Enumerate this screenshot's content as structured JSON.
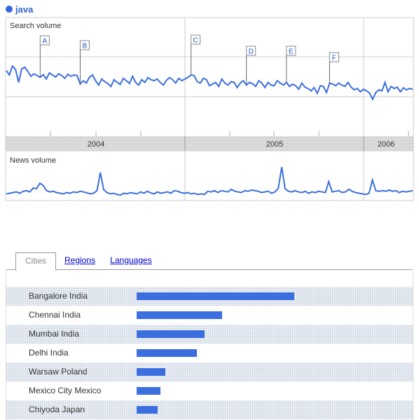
{
  "legend": {
    "term": "java",
    "color": "#3366dd"
  },
  "chart_data": [
    {
      "type": "line",
      "title": "Search volume",
      "x_tick_labels": [
        "2004",
        "2005",
        "2006"
      ],
      "grid": true,
      "series_color": "#3b6fe0",
      "ylim": [
        0,
        3
      ],
      "values": [
        1.85,
        1.72,
        1.98,
        1.88,
        1.5,
        1.9,
        1.95,
        1.82,
        1.68,
        1.75,
        1.7,
        1.65,
        1.73,
        1.6,
        1.78,
        1.72,
        1.66,
        1.75,
        1.7,
        1.62,
        1.74,
        1.68,
        1.72,
        1.7,
        1.45,
        1.55,
        1.48,
        1.65,
        1.72,
        1.55,
        1.42,
        1.6,
        1.52,
        1.46,
        1.38,
        1.58,
        1.5,
        1.44,
        1.62,
        1.55,
        1.47,
        1.68,
        1.5,
        1.42,
        1.58,
        1.5,
        1.64,
        1.58,
        1.55,
        1.6,
        1.5,
        1.42,
        1.56,
        1.64,
        1.58,
        1.48,
        1.62,
        1.55,
        1.6,
        1.65,
        1.72,
        1.7,
        1.52,
        1.48,
        1.62,
        1.58,
        1.4,
        1.45,
        1.5,
        1.38,
        1.6,
        1.48,
        1.42,
        1.52,
        1.5,
        1.35,
        1.48,
        1.55,
        1.42,
        1.5,
        1.46,
        1.38,
        1.55,
        1.48,
        1.35,
        1.5,
        1.42,
        1.4,
        1.55,
        1.48,
        1.42,
        1.5,
        1.38,
        1.45,
        1.4,
        1.3,
        1.48,
        1.36,
        1.32,
        1.25,
        1.35,
        1.18,
        1.4,
        1.38,
        1.2,
        1.48,
        1.45,
        1.4,
        1.48,
        1.42,
        1.38,
        1.5,
        1.36,
        1.28,
        1.32,
        1.22,
        1.3,
        1.25,
        1.18,
        1.0,
        1.2,
        1.28,
        1.25,
        1.5,
        1.22,
        1.38,
        1.32,
        1.36,
        1.22,
        1.34,
        1.28,
        1.32,
        1.3
      ],
      "annotations": [
        {
          "label": "A",
          "index": 11
        },
        {
          "label": "B",
          "index": 24
        },
        {
          "label": "C",
          "index": 60
        },
        {
          "label": "D",
          "index": 78
        },
        {
          "label": "E",
          "index": 91
        },
        {
          "label": "F",
          "index": 105
        }
      ]
    },
    {
      "type": "line",
      "title": "News volume",
      "series_color": "#3b6fe0",
      "ylim": [
        0,
        1
      ],
      "values": [
        0.12,
        0.14,
        0.16,
        0.18,
        0.14,
        0.2,
        0.22,
        0.18,
        0.3,
        0.28,
        0.45,
        0.38,
        0.22,
        0.18,
        0.2,
        0.16,
        0.14,
        0.12,
        0.16,
        0.14,
        0.18,
        0.16,
        0.2,
        0.18,
        0.15,
        0.12,
        0.14,
        0.22,
        0.78,
        0.25,
        0.16,
        0.12,
        0.14,
        0.1,
        0.08,
        0.14,
        0.12,
        0.16,
        0.14,
        0.12,
        0.18,
        0.14,
        0.2,
        0.15,
        0.12,
        0.18,
        0.14,
        0.16,
        0.18,
        0.14,
        0.22,
        0.2,
        0.16,
        0.14,
        0.16,
        0.12,
        0.14,
        0.1,
        0.12,
        0.1,
        0.2,
        0.18,
        0.22,
        0.16,
        0.22,
        0.2,
        0.18,
        0.26,
        0.2,
        0.18,
        0.16,
        0.22,
        0.2,
        0.24,
        0.22,
        0.2,
        0.16,
        0.18,
        0.2,
        0.14,
        0.18,
        0.3,
        0.95,
        0.28,
        0.2,
        0.18,
        0.22,
        0.18,
        0.16,
        0.2,
        0.14,
        0.18,
        0.16,
        0.2,
        0.18,
        0.16,
        0.5,
        0.18,
        0.2,
        0.22,
        0.16,
        0.18,
        0.26,
        0.2,
        0.16,
        0.14,
        0.12,
        0.1,
        0.14,
        0.55,
        0.22,
        0.2,
        0.22,
        0.2,
        0.24,
        0.2,
        0.22,
        0.16,
        0.2,
        0.18,
        0.2,
        0.22
      ]
    },
    {
      "type": "bar",
      "orientation": "horizontal",
      "bar_color": "#3b6fe0",
      "categories": [
        "Bangalore India",
        "Chennai India",
        "Mumbai India",
        "Delhi India",
        "Warsaw Poland",
        "Mexico City Mexico",
        "Chiyoda Japan"
      ],
      "values": [
        1.0,
        0.54,
        0.43,
        0.38,
        0.18,
        0.15,
        0.135
      ]
    }
  ],
  "tabs": [
    {
      "label": "Cities",
      "active": true
    },
    {
      "label": "Regions",
      "active": false
    },
    {
      "label": "Languages",
      "active": false
    }
  ]
}
